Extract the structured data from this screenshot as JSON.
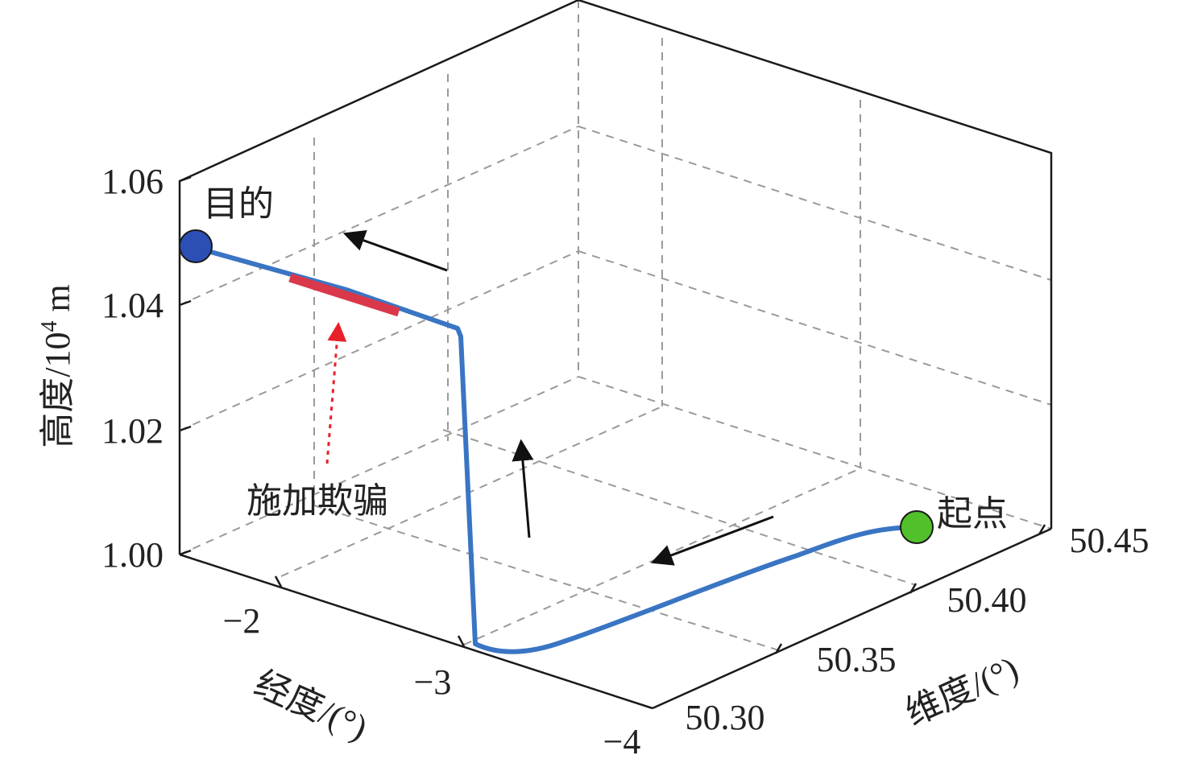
{
  "chart_data": {
    "type": "line3d",
    "zlabel": "高度/10",
    "zlabel_sup": "4",
    "zlabel_unit": " m",
    "xlabel": "经度/(°)",
    "ylabel": "维度/(°)",
    "xlim": [
      -1.5,
      -4.0
    ],
    "ylim": [
      50.3,
      50.45
    ],
    "zlim": [
      1.0,
      1.06
    ],
    "z_ticks": [
      "1.00",
      "1.02",
      "1.04",
      "1.06"
    ],
    "x_ticks": [
      "−2",
      "−3",
      "−4"
    ],
    "y_ticks": [
      "50.30",
      "50.35",
      "50.40",
      "50.45"
    ],
    "grid": true,
    "series": [
      {
        "color": "#3a75c4",
        "points": [
          {
            "lon": -3.65,
            "lat": 50.44,
            "alt": 1.0
          },
          {
            "lon": -3.5,
            "lat": 50.435,
            "alt": 1.0
          },
          {
            "lon": -3.3,
            "lat": 50.418,
            "alt": 1.0
          },
          {
            "lon": -3.1,
            "lat": 50.39,
            "alt": 1.0
          },
          {
            "lon": -2.95,
            "lat": 50.36,
            "alt": 1.0
          },
          {
            "lon": -2.85,
            "lat": 50.33,
            "alt": 1.0
          },
          {
            "lon": -2.78,
            "lat": 50.31,
            "alt": 1.0
          },
          {
            "lon": -2.72,
            "lat": 50.312,
            "alt": 1.0
          },
          {
            "lon": -2.7,
            "lat": 50.32,
            "alt": 1.0
          },
          {
            "lon": -2.7,
            "lat": 50.32,
            "alt": 1.04
          },
          {
            "lon": -2.52,
            "lat": 50.32,
            "alt": 1.045
          },
          {
            "lon": -2.3,
            "lat": 50.32,
            "alt": 1.05
          },
          {
            "lon": -1.6,
            "lat": 50.32,
            "alt": 1.05
          }
        ]
      }
    ],
    "spoof_segment": {
      "color": "#d9384a",
      "lon_range": [
        -2.52,
        -2.3
      ],
      "lat": 50.32
    },
    "start": {
      "label": "起点",
      "color": "#52c02b",
      "lon": -3.65,
      "lat": 50.44,
      "alt": 1.0
    },
    "end": {
      "label": "目的",
      "color": "#2b4fb5",
      "lon": -1.6,
      "lat": 50.32,
      "alt": 1.05
    },
    "annotations": [
      {
        "text": "施加欺骗",
        "color": "#e8202a",
        "style": "dotted-arrow"
      }
    ],
    "direction_arrows": 3
  }
}
